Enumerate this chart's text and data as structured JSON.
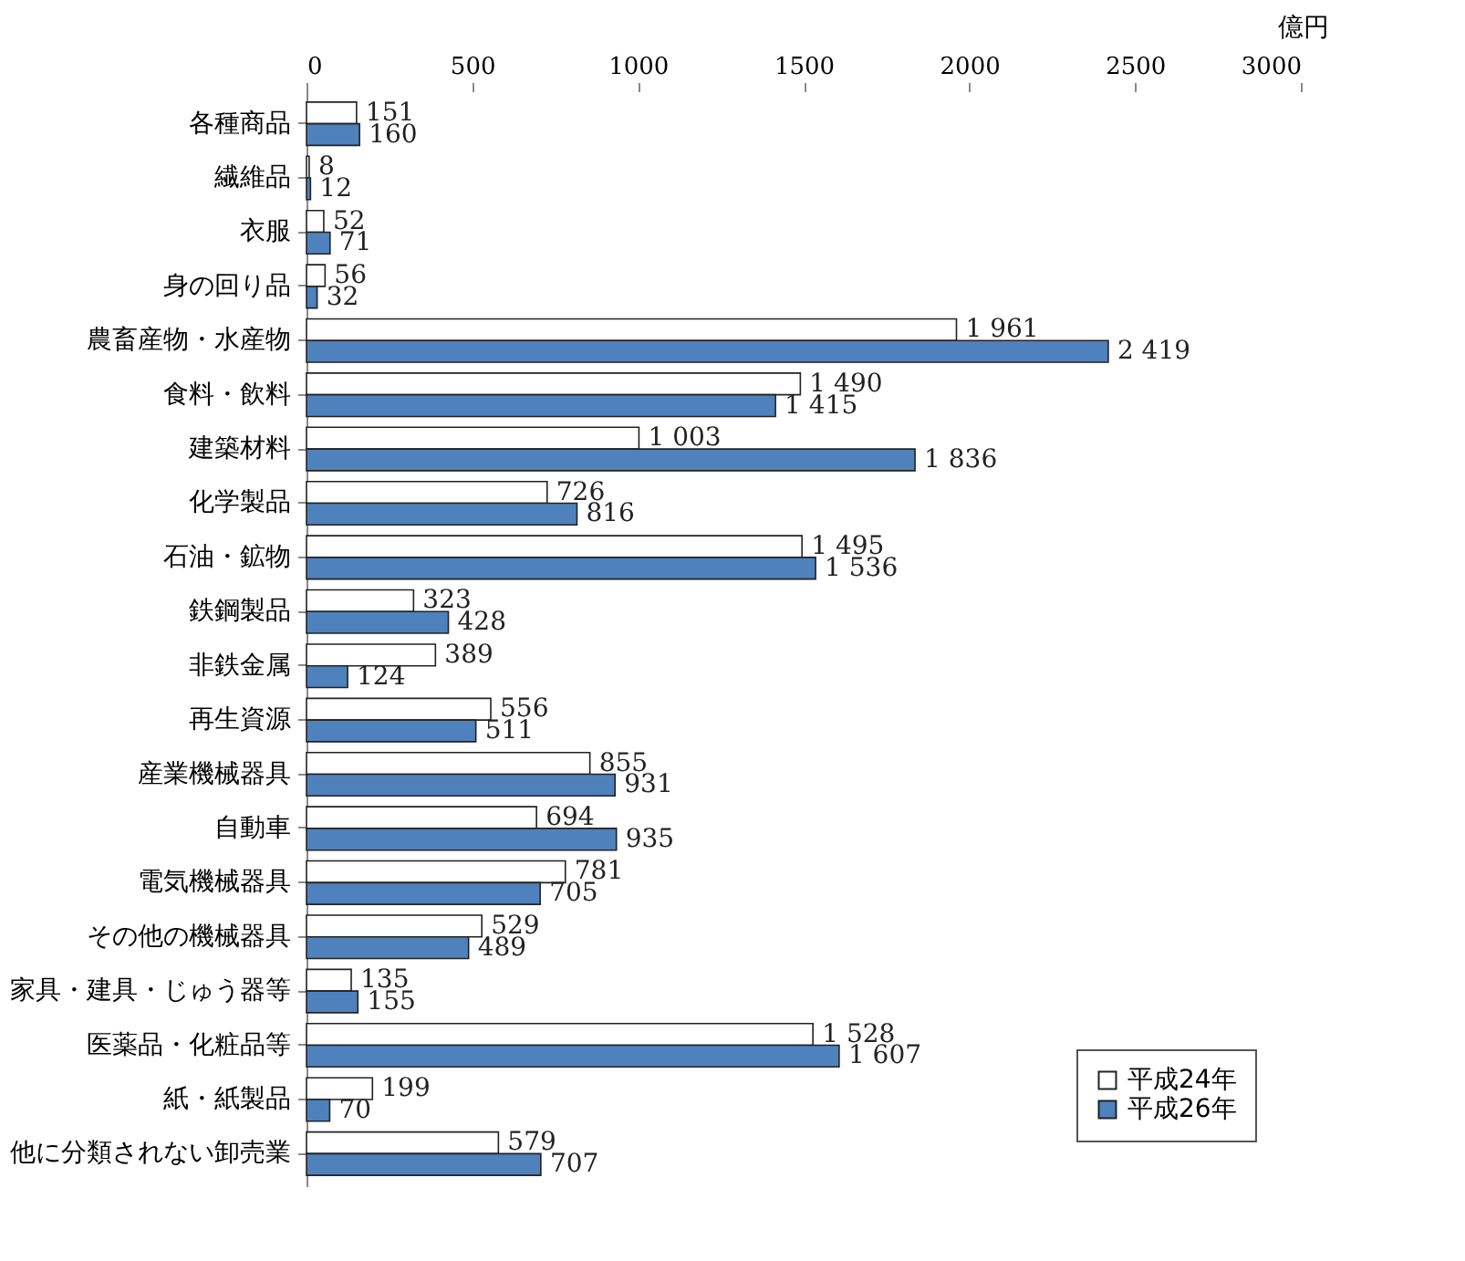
{
  "chart_data": {
    "type": "bar",
    "orientation": "horizontal",
    "xlabel": "億円",
    "categories": [
      "各種商品",
      "繊維品",
      "衣服",
      "身の回り品",
      "農畜産物・水産物",
      "食料・飲料",
      "建築材料",
      "化学製品",
      "石油・鉱物",
      "鉄鋼製品",
      "非鉄金属",
      "再生資源",
      "産業機械器具",
      "自動車",
      "電気機械器具",
      "その他の機械器具",
      "家具・建具・じゅう器等",
      "医薬品・化粧品等",
      "紙・紙製品",
      "他に分類されない卸売業"
    ],
    "series": [
      {
        "name": "平成24年",
        "color": "#ffffff",
        "values": [
          151,
          8,
          52,
          56,
          1961,
          1490,
          1003,
          726,
          1495,
          323,
          389,
          556,
          855,
          694,
          781,
          529,
          135,
          1528,
          199,
          579
        ],
        "value_labels": [
          "151",
          "8",
          "52",
          "56",
          "1 961",
          "1 490",
          "1 003",
          "726",
          "1 495",
          "323",
          "389",
          "556",
          "855",
          "694",
          "781",
          "529",
          "135",
          "1 528",
          "199",
          "579"
        ]
      },
      {
        "name": "平成26年",
        "color": "#4f81bd",
        "values": [
          160,
          12,
          71,
          32,
          2419,
          1415,
          1836,
          816,
          1536,
          428,
          124,
          511,
          931,
          935,
          705,
          489,
          155,
          1607,
          70,
          707
        ],
        "value_labels": [
          "160",
          "12",
          "71",
          "32",
          "2 419",
          "1 415",
          "1 836",
          "816",
          "1 536",
          "428",
          "124",
          "511",
          "931",
          "935",
          "705",
          "489",
          "155",
          "1 607",
          "70",
          "707"
        ]
      }
    ],
    "xlim": [
      0,
      3000
    ],
    "xticks": [
      0,
      500,
      1000,
      1500,
      2000,
      2500,
      3000
    ],
    "legend": "bottom right"
  }
}
